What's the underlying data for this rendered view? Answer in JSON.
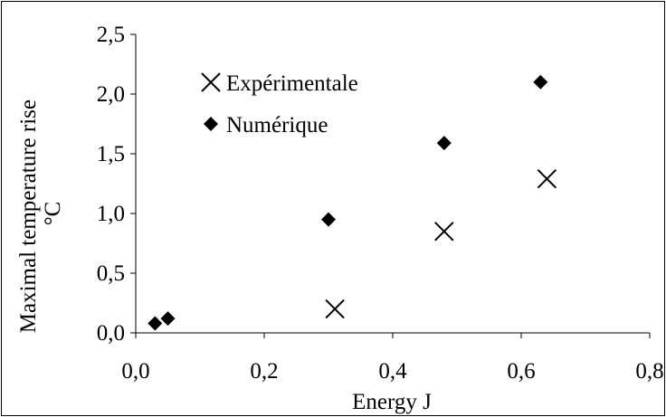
{
  "chart_data": {
    "type": "scatter",
    "title": "",
    "xlabel": "Energy J",
    "ylabel_lines": [
      "Maximal temperature rise",
      "°C"
    ],
    "xlim": [
      0,
      0.8
    ],
    "ylim": [
      0,
      2.5
    ],
    "x_ticks": [
      "0,0",
      "0,2",
      "0,4",
      "0,6",
      "0,8"
    ],
    "y_ticks": [
      "0,0",
      "0,5",
      "1,0",
      "1,5",
      "2,0",
      "2,5"
    ],
    "grid": false,
    "legend_position": "top-left-inside",
    "series": [
      {
        "name": "Expérimentale",
        "marker": "x",
        "color": "#000000",
        "points": [
          {
            "x": 0.31,
            "y": 0.2
          },
          {
            "x": 0.48,
            "y": 0.85
          },
          {
            "x": 0.64,
            "y": 1.29
          }
        ]
      },
      {
        "name": "Numérique",
        "marker": "diamond",
        "color": "#000000",
        "points": [
          {
            "x": 0.03,
            "y": 0.08
          },
          {
            "x": 0.05,
            "y": 0.12
          },
          {
            "x": 0.3,
            "y": 0.95
          },
          {
            "x": 0.48,
            "y": 1.59
          },
          {
            "x": 0.63,
            "y": 2.1
          }
        ]
      }
    ]
  }
}
